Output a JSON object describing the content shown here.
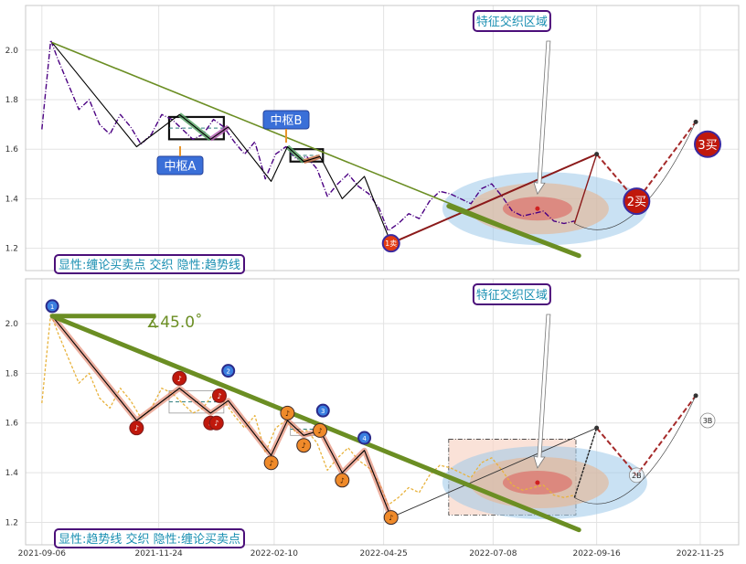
{
  "chart_data": [
    {
      "type": "line",
      "panel": "top",
      "x_ticks": [
        "2021-09-06",
        "2021-11-24",
        "2022-02-10",
        "2022-04-25",
        "2022-07-08",
        "2022-09-16",
        "2022-11-25"
      ],
      "y_ticks": [
        "1.2",
        "1.4",
        "1.6",
        "1.8",
        "2.0"
      ],
      "ylim": [
        1.11,
        2.18
      ],
      "xlim": [
        "2021-08-26",
        "2022-12-21"
      ],
      "grid": true,
      "price_line": {
        "color": "#4b0082",
        "x": [
          "2021-09-06",
          "2021-09-12",
          "2021-09-17",
          "2021-09-24",
          "2021-10-01",
          "2021-10-08",
          "2021-10-15",
          "2021-10-22",
          "2021-10-29",
          "2021-11-05",
          "2021-11-12",
          "2021-11-19",
          "2021-11-26",
          "2021-12-03",
          "2021-12-10",
          "2021-12-17",
          "2021-12-24",
          "2021-12-31",
          "2022-01-07",
          "2022-01-14",
          "2022-01-21",
          "2022-01-28",
          "2022-02-04",
          "2022-02-11",
          "2022-02-18",
          "2022-02-25",
          "2022-03-04",
          "2022-03-11",
          "2022-03-18",
          "2022-03-25",
          "2022-04-01",
          "2022-04-08",
          "2022-04-15",
          "2022-04-22",
          "2022-04-28",
          "2022-05-05",
          "2022-05-12",
          "2022-05-19",
          "2022-05-26",
          "2022-06-02",
          "2022-06-09",
          "2022-06-16",
          "2022-06-23",
          "2022-06-30",
          "2022-07-07",
          "2022-07-14",
          "2022-07-21",
          "2022-07-28",
          "2022-08-04",
          "2022-08-11",
          "2022-08-18",
          "2022-08-25",
          "2022-09-01"
        ],
        "y": [
          1.68,
          2.04,
          1.96,
          1.86,
          1.76,
          1.8,
          1.7,
          1.66,
          1.74,
          1.69,
          1.62,
          1.66,
          1.74,
          1.72,
          1.68,
          1.64,
          1.66,
          1.72,
          1.69,
          1.63,
          1.58,
          1.63,
          1.48,
          1.58,
          1.61,
          1.56,
          1.57,
          1.52,
          1.41,
          1.46,
          1.5,
          1.45,
          1.42,
          1.36,
          1.27,
          1.3,
          1.34,
          1.32,
          1.39,
          1.43,
          1.42,
          1.4,
          1.38,
          1.44,
          1.46,
          1.41,
          1.35,
          1.33,
          1.34,
          1.35,
          1.31,
          1.3,
          1.31
        ]
      },
      "stroke_line": {
        "color": "#000000",
        "x": [
          "2021-09-13",
          "2021-11-09",
          "2021-12-08",
          "2021-12-29",
          "2022-01-10",
          "2022-02-08",
          "2022-02-19",
          "2022-03-02",
          "2022-03-13",
          "2022-03-28",
          "2022-04-12",
          "2022-04-30"
        ],
        "y": [
          2.03,
          1.61,
          1.74,
          1.64,
          1.69,
          1.47,
          1.61,
          1.55,
          1.57,
          1.4,
          1.49,
          1.22
        ]
      },
      "future_stroke": {
        "x": [
          "2022-04-30",
          "2022-09-16",
          "2022-09-01",
          "2022-09-16",
          "2022-10-13",
          "2022-11-22"
        ],
        "y": [
          1.22,
          1.58,
          1.3,
          1.58,
          1.39,
          1.71
        ]
      },
      "trend_line": {
        "x": [
          "2021-09-13",
          "2022-09-04"
        ],
        "y": [
          2.03,
          1.17
        ],
        "color": "#6b8e23"
      },
      "zhongshu": [
        {
          "label": "中枢A",
          "x0": "2021-12-01",
          "x1": "2022-01-07",
          "top": 1.73,
          "bottom": 1.64
        },
        {
          "label": "中枢B",
          "x0": "2022-02-21",
          "x1": "2022-03-15",
          "top": 1.6,
          "bottom": 1.55
        }
      ],
      "feature_zone": {
        "label": "特征交织区域",
        "center_x": "2022-08-07",
        "center_y": 1.36
      },
      "points": [
        {
          "label": "1卖",
          "x": "2022-04-30",
          "y": 1.22
        },
        {
          "label": "2买",
          "x": "2022-10-13",
          "y": 1.39
        },
        {
          "label": "3买",
          "x": "2022-11-30",
          "y": 1.62
        }
      ],
      "caption": "显性:缠论买卖点 交织 隐性:趋势线"
    },
    {
      "type": "line",
      "panel": "bottom",
      "x_ticks": [
        "2021-09-06",
        "2021-11-24",
        "2022-02-10",
        "2022-04-25",
        "2022-07-08",
        "2022-09-16",
        "2022-11-25"
      ],
      "y_ticks": [
        "1.2",
        "1.4",
        "1.6",
        "1.8",
        "2.0"
      ],
      "ylim": [
        1.11,
        2.18
      ],
      "xlim": [
        "2021-08-26",
        "2022-12-21"
      ],
      "grid": true,
      "price_line": {
        "color": "#e8b33e",
        "x": [
          "2021-09-06",
          "2021-09-12",
          "2021-09-17",
          "2021-09-24",
          "2021-10-01",
          "2021-10-08",
          "2021-10-15",
          "2021-10-22",
          "2021-10-29",
          "2021-11-05",
          "2021-11-12",
          "2021-11-19",
          "2021-11-26",
          "2021-12-03",
          "2021-12-10",
          "2021-12-17",
          "2021-12-24",
          "2021-12-31",
          "2022-01-07",
          "2022-01-14",
          "2022-01-21",
          "2022-01-28",
          "2022-02-04",
          "2022-02-11",
          "2022-02-18",
          "2022-02-25",
          "2022-03-04",
          "2022-03-11",
          "2022-03-18",
          "2022-03-25",
          "2022-04-01",
          "2022-04-08",
          "2022-04-15",
          "2022-04-22",
          "2022-04-28",
          "2022-05-05",
          "2022-05-12",
          "2022-05-19",
          "2022-05-26",
          "2022-06-02",
          "2022-06-09",
          "2022-06-16",
          "2022-06-23",
          "2022-06-30",
          "2022-07-07",
          "2022-07-14",
          "2022-07-21",
          "2022-07-28",
          "2022-08-04",
          "2022-08-11",
          "2022-08-18",
          "2022-08-25",
          "2022-09-01"
        ],
        "y": [
          1.68,
          2.04,
          1.96,
          1.86,
          1.76,
          1.8,
          1.7,
          1.66,
          1.74,
          1.69,
          1.62,
          1.66,
          1.74,
          1.72,
          1.68,
          1.64,
          1.66,
          1.72,
          1.69,
          1.63,
          1.58,
          1.63,
          1.48,
          1.58,
          1.61,
          1.56,
          1.57,
          1.52,
          1.41,
          1.46,
          1.5,
          1.45,
          1.42,
          1.36,
          1.27,
          1.3,
          1.34,
          1.32,
          1.39,
          1.43,
          1.42,
          1.4,
          1.38,
          1.44,
          1.46,
          1.41,
          1.35,
          1.33,
          1.34,
          1.35,
          1.31,
          1.3,
          1.31
        ]
      },
      "stroke_line": {
        "color": "#000000",
        "x": [
          "2021-09-13",
          "2021-11-09",
          "2021-12-08",
          "2021-12-29",
          "2022-01-10",
          "2022-02-08",
          "2022-02-19",
          "2022-03-02",
          "2022-03-13",
          "2022-03-28",
          "2022-04-12",
          "2022-04-30"
        ],
        "y": [
          2.03,
          1.61,
          1.74,
          1.64,
          1.69,
          1.47,
          1.61,
          1.55,
          1.57,
          1.4,
          1.49,
          1.22
        ]
      },
      "future_stroke": {
        "x": [
          "2022-04-30",
          "2022-09-16",
          "2022-09-01",
          "2022-09-16",
          "2022-10-13",
          "2022-11-22"
        ],
        "y": [
          1.22,
          1.58,
          1.3,
          1.58,
          1.39,
          1.71
        ]
      },
      "trend_line": {
        "x": [
          "2021-09-13",
          "2022-09-04"
        ],
        "y": [
          2.03,
          1.17
        ],
        "color": "#6b8e23"
      },
      "trend_flat": {
        "x": [
          "2021-09-13",
          "2021-11-22"
        ],
        "y": [
          2.03,
          2.03
        ]
      },
      "angle_label": "∡45.0˚",
      "feature_zone": {
        "label": "特征交织区域",
        "center_x": "2022-08-07",
        "center_y": 1.36
      },
      "numbered_points": [
        {
          "label": "1",
          "x": "2021-09-13",
          "y": 2.07
        },
        {
          "label": "2",
          "x": "2022-01-10",
          "y": 1.81
        },
        {
          "label": "3",
          "x": "2022-03-15",
          "y": 1.65
        },
        {
          "label": "4",
          "x": "2022-04-12",
          "y": 1.54
        }
      ],
      "note_markers": {
        "red": [
          {
            "x": "2021-11-09",
            "y": 1.58
          },
          {
            "x": "2021-12-08",
            "y": 1.78
          },
          {
            "x": "2021-12-29",
            "y": 1.6
          },
          {
            "x": "2022-01-02",
            "y": 1.6
          },
          {
            "x": "2022-01-04",
            "y": 1.71
          }
        ],
        "orange": [
          {
            "x": "2022-02-08",
            "y": 1.44
          },
          {
            "x": "2022-02-19",
            "y": 1.64
          },
          {
            "x": "2022-03-02",
            "y": 1.51
          },
          {
            "x": "2022-03-13",
            "y": 1.57
          },
          {
            "x": "2022-03-28",
            "y": 1.37
          },
          {
            "x": "2022-04-30",
            "y": 1.22
          }
        ]
      },
      "points": [
        {
          "label": "3B",
          "x": "2022-11-30",
          "y": 1.61
        },
        {
          "label": "2B",
          "x": "2022-10-13",
          "y": 1.39
        }
      ],
      "caption": "显性:趋势线 交织 隐性:缠论买卖点"
    }
  ],
  "colors": {
    "purple": "#4b0082",
    "olive": "#6b8e23",
    "tag_blue": "#3a6fd8",
    "tag_border": "#4b0f7a",
    "sell_red": "#e33b12",
    "buy_red": "#c0180c",
    "note_orange": "#ef8a2a"
  }
}
